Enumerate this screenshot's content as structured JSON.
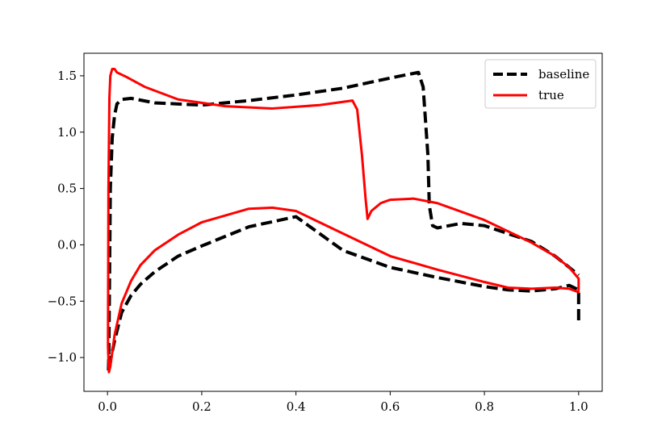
{
  "chart_data": {
    "type": "line",
    "title": "",
    "xlabel": "",
    "ylabel": "",
    "xlim": [
      -0.05,
      1.05
    ],
    "ylim": [
      -1.3,
      1.7
    ],
    "xticks": [
      0.0,
      0.2,
      0.4,
      0.6,
      0.8,
      1.0
    ],
    "xtick_labels": [
      "0.0",
      "0.2",
      "0.4",
      "0.6",
      "0.8",
      "1.0"
    ],
    "yticks": [
      -1.0,
      -0.5,
      0.0,
      0.5,
      1.0,
      1.5
    ],
    "ytick_labels": [
      "−1.0",
      "−0.5",
      "0.0",
      "0.5",
      "1.0",
      "1.5"
    ],
    "grid": false,
    "legend_position": "top-right",
    "series": [
      {
        "name": "baseline",
        "color": "#000000",
        "style": "dashed",
        "points": [
          [
            1.0,
            -0.67
          ],
          [
            1.0,
            -0.4
          ],
          [
            0.98,
            -0.36
          ],
          [
            0.95,
            -0.39
          ],
          [
            0.9,
            -0.41
          ],
          [
            0.85,
            -0.4
          ],
          [
            0.8,
            -0.37
          ],
          [
            0.7,
            -0.29
          ],
          [
            0.6,
            -0.2
          ],
          [
            0.5,
            -0.05
          ],
          [
            0.4,
            0.25
          ],
          [
            0.3,
            0.16
          ],
          [
            0.2,
            -0.01
          ],
          [
            0.15,
            -0.1
          ],
          [
            0.1,
            -0.24
          ],
          [
            0.07,
            -0.35
          ],
          [
            0.05,
            -0.45
          ],
          [
            0.03,
            -0.6
          ],
          [
            0.015,
            -0.85
          ],
          [
            0.005,
            -1.05
          ],
          [
            0.002,
            -1.12
          ],
          [
            0.003,
            -0.9
          ],
          [
            0.006,
            0.5
          ],
          [
            0.01,
            0.95
          ],
          [
            0.015,
            1.15
          ],
          [
            0.02,
            1.25
          ],
          [
            0.03,
            1.29
          ],
          [
            0.05,
            1.3
          ],
          [
            0.1,
            1.26
          ],
          [
            0.2,
            1.24
          ],
          [
            0.3,
            1.28
          ],
          [
            0.4,
            1.33
          ],
          [
            0.5,
            1.39
          ],
          [
            0.6,
            1.48
          ],
          [
            0.66,
            1.53
          ],
          [
            0.67,
            1.4
          ],
          [
            0.68,
            0.8
          ],
          [
            0.683,
            0.35
          ],
          [
            0.69,
            0.17
          ],
          [
            0.7,
            0.15
          ],
          [
            0.75,
            0.19
          ],
          [
            0.8,
            0.17
          ],
          [
            0.9,
            0.03
          ],
          [
            0.95,
            -0.1
          ],
          [
            0.98,
            -0.2
          ],
          [
            1.0,
            -0.27
          ]
        ]
      },
      {
        "name": "true",
        "color": "#ff0000",
        "style": "solid",
        "points": [
          [
            1.0,
            -0.42
          ],
          [
            0.98,
            -0.39
          ],
          [
            0.95,
            -0.38
          ],
          [
            0.9,
            -0.39
          ],
          [
            0.85,
            -0.38
          ],
          [
            0.8,
            -0.33
          ],
          [
            0.7,
            -0.22
          ],
          [
            0.6,
            -0.1
          ],
          [
            0.5,
            0.1
          ],
          [
            0.4,
            0.3
          ],
          [
            0.35,
            0.33
          ],
          [
            0.3,
            0.32
          ],
          [
            0.2,
            0.2
          ],
          [
            0.15,
            0.09
          ],
          [
            0.1,
            -0.05
          ],
          [
            0.07,
            -0.18
          ],
          [
            0.05,
            -0.32
          ],
          [
            0.03,
            -0.52
          ],
          [
            0.015,
            -0.8
          ],
          [
            0.006,
            -1.08
          ],
          [
            0.003,
            -1.13
          ],
          [
            0.001,
            -0.9
          ],
          [
            0.002,
            0.5
          ],
          [
            0.004,
            1.3
          ],
          [
            0.006,
            1.5
          ],
          [
            0.01,
            1.56
          ],
          [
            0.015,
            1.56
          ],
          [
            0.02,
            1.53
          ],
          [
            0.04,
            1.49
          ],
          [
            0.08,
            1.4
          ],
          [
            0.15,
            1.29
          ],
          [
            0.25,
            1.23
          ],
          [
            0.35,
            1.21
          ],
          [
            0.45,
            1.24
          ],
          [
            0.52,
            1.28
          ],
          [
            0.53,
            1.2
          ],
          [
            0.54,
            0.8
          ],
          [
            0.548,
            0.4
          ],
          [
            0.552,
            0.23
          ],
          [
            0.56,
            0.3
          ],
          [
            0.58,
            0.37
          ],
          [
            0.6,
            0.4
          ],
          [
            0.65,
            0.41
          ],
          [
            0.7,
            0.37
          ],
          [
            0.8,
            0.22
          ],
          [
            0.9,
            0.02
          ],
          [
            0.95,
            -0.1
          ],
          [
            0.98,
            -0.2
          ],
          [
            1.0,
            -0.3
          ],
          [
            1.0,
            -0.4
          ]
        ]
      }
    ]
  }
}
